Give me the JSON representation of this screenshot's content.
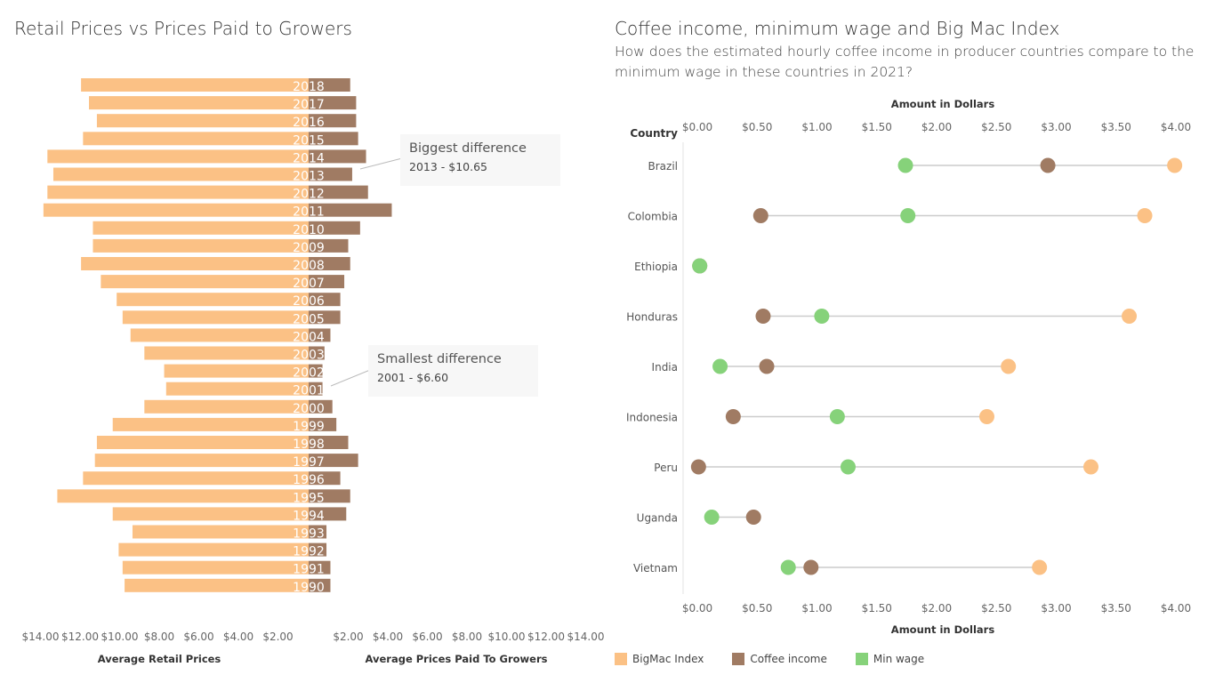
{
  "left": {
    "title": "Retail Prices vs Prices Paid to Growers",
    "left_axis_label": "Average Retail Prices",
    "right_axis_label": "Average Prices Paid To Growers",
    "left_ticks": [
      "$14.00",
      "$12.00",
      "$10.00",
      "$8.00",
      "$6.00",
      "$4.00",
      "$2.00"
    ],
    "right_ticks": [
      "$2.00",
      "$4.00",
      "$6.00",
      "$8.00",
      "$10.00",
      "$12.00",
      "$14.00"
    ],
    "callouts": [
      {
        "title": "Biggest difference",
        "value": "2013 - $10.65"
      },
      {
        "title": "Smallest difference",
        "value": "2001 - $6.60"
      }
    ]
  },
  "right": {
    "title": "Coffee income, minimum wage and Big Mac Index",
    "subtitle": "How does the estimated hourly coffee income in producer countries compare to the minimum wage in these countries in 2021?",
    "top_axis_label": "Amount in Dollars",
    "bottom_axis_label": "Amount in Dollars",
    "row_header": "Country",
    "ticks": [
      "$0.00",
      "$0.50",
      "$1.00",
      "$1.50",
      "$2.00",
      "$2.50",
      "$3.00",
      "$3.50",
      "$4.00"
    ]
  },
  "legend": [
    {
      "label": "BigMac Index",
      "color": "#fbc185"
    },
    {
      "label": "Coffee income",
      "color": "#a07b63"
    },
    {
      "label": "Min wage",
      "color": "#86d27a"
    }
  ],
  "colors": {
    "retail": "#fbc185",
    "grower": "#a07b63",
    "minwage": "#86d27a",
    "line": "#cccccc"
  },
  "chart_data": [
    {
      "type": "bar",
      "title": "Retail Prices vs Prices Paid to Growers",
      "categories": [
        "2018",
        "2017",
        "2016",
        "2015",
        "2014",
        "2013",
        "2012",
        "2011",
        "2010",
        "2009",
        "2008",
        "2007",
        "2006",
        "2005",
        "2004",
        "2003",
        "2002",
        "2001",
        "2000",
        "1999",
        "1998",
        "1997",
        "1996",
        "1995",
        "1994",
        "1993",
        "1992",
        "1991",
        "1990"
      ],
      "series": [
        {
          "name": "Average Retail Prices",
          "values": [
            11.5,
            11.1,
            10.7,
            11.4,
            13.2,
            12.9,
            13.2,
            13.4,
            10.9,
            10.9,
            11.5,
            10.5,
            9.7,
            9.4,
            9.0,
            8.3,
            7.3,
            7.2,
            8.3,
            9.9,
            10.7,
            10.8,
            11.4,
            12.7,
            9.9,
            8.9,
            9.6,
            9.4,
            9.3
          ]
        },
        {
          "name": "Average Prices Paid To Growers",
          "values": [
            2.1,
            2.4,
            2.4,
            2.5,
            2.9,
            2.2,
            3.0,
            4.2,
            2.6,
            2.0,
            2.1,
            1.8,
            1.6,
            1.6,
            1.1,
            0.8,
            0.7,
            0.7,
            1.2,
            1.4,
            2.0,
            2.5,
            1.6,
            2.1,
            1.9,
            0.9,
            0.9,
            1.1,
            1.1
          ]
        }
      ],
      "xlabel": "Average Retail Prices / Average Prices Paid To Growers",
      "xlim": [
        0,
        14
      ]
    },
    {
      "type": "scatter",
      "title": "Coffee income, minimum wage and Big Mac Index",
      "categories": [
        "Brazil",
        "Colombia",
        "Ethiopia",
        "Honduras",
        "India",
        "Indonesia",
        "Peru",
        "Uganda",
        "Vietnam"
      ],
      "series": [
        {
          "name": "BigMac Index",
          "values": [
            3.99,
            3.74,
            null,
            3.61,
            2.6,
            2.42,
            3.29,
            null,
            2.86
          ]
        },
        {
          "name": "Coffee income",
          "values": [
            2.93,
            0.53,
            0.02,
            0.55,
            0.58,
            0.3,
            0.01,
            0.47,
            0.95
          ]
        },
        {
          "name": "Min wage",
          "values": [
            1.74,
            1.76,
            0.02,
            1.04,
            0.19,
            1.17,
            1.26,
            0.12,
            0.76
          ]
        }
      ],
      "xlabel": "Amount in Dollars",
      "ylabel": "Country",
      "xlim": [
        0,
        4
      ]
    }
  ]
}
